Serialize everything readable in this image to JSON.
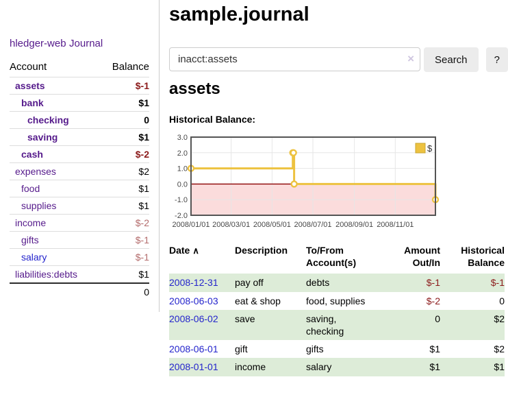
{
  "sidebar": {
    "brand": "hledger-web",
    "nav": {
      "journal": "Journal"
    },
    "table": {
      "account_header": "Account",
      "balance_header": "Balance",
      "accounts": [
        {
          "name": "assets",
          "balance": "$-1",
          "level": 1,
          "in_account": true,
          "balance_class": "neg-strong",
          "link_class": ""
        },
        {
          "name": "bank",
          "balance": "$1",
          "level": 2,
          "in_account": true,
          "balance_class": "",
          "link_class": ""
        },
        {
          "name": "checking",
          "balance": "0",
          "level": 3,
          "in_account": true,
          "balance_class": "",
          "link_class": ""
        },
        {
          "name": "saving",
          "balance": "$1",
          "level": 3,
          "in_account": true,
          "balance_class": "",
          "link_class": ""
        },
        {
          "name": "cash",
          "balance": "$-2",
          "level": 2,
          "in_account": true,
          "balance_class": "neg-strong",
          "link_class": ""
        },
        {
          "name": "expenses",
          "balance": "$2",
          "level": 1,
          "in_account": false,
          "balance_class": "",
          "link_class": ""
        },
        {
          "name": "food",
          "balance": "$1",
          "level": 2,
          "in_account": false,
          "balance_class": "",
          "link_class": ""
        },
        {
          "name": "supplies",
          "balance": "$1",
          "level": 2,
          "in_account": false,
          "balance_class": "",
          "link_class": ""
        },
        {
          "name": "income",
          "balance": "$-2",
          "level": 1,
          "in_account": false,
          "balance_class": "neg-soft",
          "link_class": ""
        },
        {
          "name": "gifts",
          "balance": "$-1",
          "level": 2,
          "in_account": false,
          "balance_class": "neg-soft",
          "link_class": ""
        },
        {
          "name": "salary",
          "balance": "$-1",
          "level": 2,
          "in_account": false,
          "balance_class": "neg-soft",
          "link_class": "link-blue"
        },
        {
          "name": "liabilities:debts",
          "balance": "$1",
          "level": 1,
          "in_account": false,
          "balance_class": "",
          "link_class": ""
        }
      ],
      "total": "0"
    }
  },
  "header": {
    "title": "sample.journal"
  },
  "search": {
    "value": "inacct:assets",
    "clear_icon": "×",
    "button_label": "Search",
    "help_label": "?"
  },
  "account_page": {
    "heading": "assets",
    "chart_label": "Historical Balance:"
  },
  "chart_data": {
    "type": "line",
    "title": "Historical Balance",
    "step": true,
    "series": [
      {
        "name": "$",
        "color": "#EDC240",
        "points": [
          [
            "2008-01-01",
            1
          ],
          [
            "2008-06-01",
            2
          ],
          [
            "2008-06-02",
            2
          ],
          [
            "2008-06-03",
            0
          ],
          [
            "2008-12-31",
            -1
          ]
        ]
      }
    ],
    "x_ticks": [
      "2008/01/01",
      "2008/03/01",
      "2008/05/01",
      "2008/07/01",
      "2008/09/01",
      "2008/11/01"
    ],
    "y_ticks": [
      3.0,
      2.0,
      1.0,
      0.0,
      -1.0,
      -2.0
    ],
    "ylim": [
      -2,
      3
    ],
    "xlim": [
      "2008-01-01",
      "2008-12-31"
    ],
    "grid": true,
    "legend": {
      "label": "$",
      "position": "top-right"
    },
    "colors": {
      "negative_region": "#fbdcdc",
      "zero_line": "#8b0000",
      "grid_line": "#e6e6e6",
      "border": "#545454",
      "tick_text": "#474747"
    }
  },
  "register": {
    "headers": {
      "date": "Date",
      "sort_icon": "∧",
      "description": "Description",
      "accounts": "To/From\nAccount(s)",
      "amount": "Amount\nOut/In",
      "balance": "Historical\nBalance"
    },
    "rows": [
      {
        "date": "2008-12-31",
        "description": "pay off",
        "accounts": "debts",
        "amount": "$-1",
        "balance": "$-1",
        "amount_neg": true,
        "balance_neg": true
      },
      {
        "date": "2008-06-03",
        "description": "eat & shop",
        "accounts": "food, supplies",
        "amount": "$-2",
        "balance": "0",
        "amount_neg": true,
        "balance_neg": false
      },
      {
        "date": "2008-06-02",
        "description": "save",
        "accounts": "saving,\nchecking",
        "amount": "0",
        "balance": "$2",
        "amount_neg": false,
        "balance_neg": false
      },
      {
        "date": "2008-06-01",
        "description": "gift",
        "accounts": "gifts",
        "amount": "$1",
        "balance": "$2",
        "amount_neg": false,
        "balance_neg": false
      },
      {
        "date": "2008-01-01",
        "description": "income",
        "accounts": "salary",
        "amount": "$1",
        "balance": "$1",
        "amount_neg": false,
        "balance_neg": false
      }
    ]
  },
  "colors": {
    "link_purple": "#551a8b",
    "link_blue": "#2424cc",
    "negative_strong": "#8b1a1a",
    "negative_soft": "#b36b6b",
    "row_stripe_green": "#ddecd8",
    "series_gold": "#EDC240"
  }
}
